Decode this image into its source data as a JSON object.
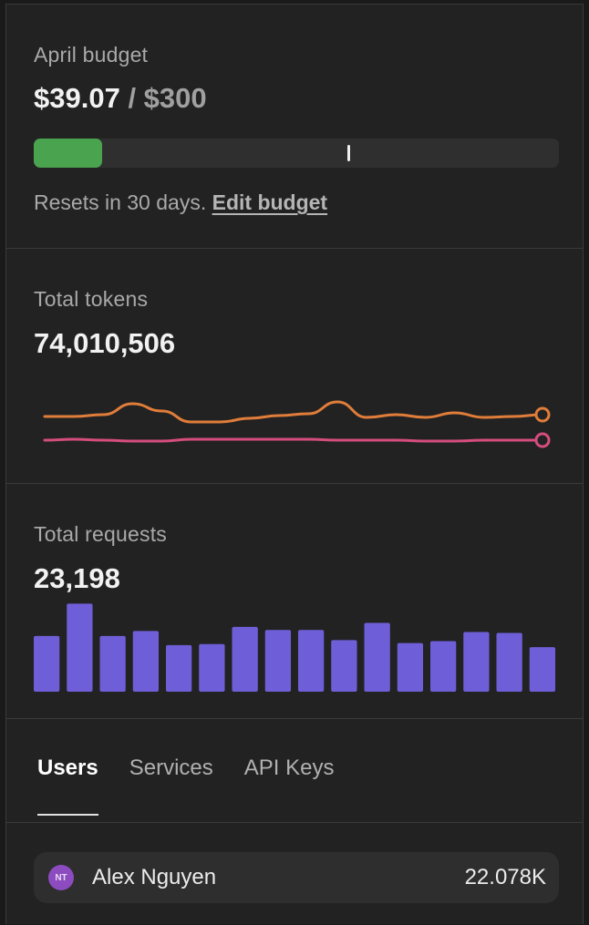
{
  "budget": {
    "label": "April budget",
    "spent": "$39.07",
    "separator": " / ",
    "total": "$300",
    "progress_fraction": 0.1302,
    "marker_fraction": 0.6,
    "fill_color": "#4aa34e",
    "resets_text": "Resets in 30 days.",
    "edit_label": "Edit budget"
  },
  "tokens": {
    "label": "Total tokens",
    "value": "74,010,506",
    "chart_data": {
      "type": "line",
      "series": [
        {
          "color": "#e07d3a",
          "values": [
            46,
            46,
            48,
            60,
            52,
            40,
            40,
            44,
            47,
            49,
            62,
            45,
            48,
            45,
            50,
            45,
            46,
            48
          ]
        },
        {
          "color": "#d54d7d",
          "values": [
            20,
            21,
            20,
            19,
            19,
            21,
            21,
            21,
            21,
            21,
            20,
            20,
            20,
            19,
            19,
            20,
            20,
            20
          ]
        }
      ],
      "ylim": [
        0,
        80
      ]
    }
  },
  "requests": {
    "label": "Total requests",
    "value": "23,198",
    "chart_data": {
      "type": "bar",
      "color": "#6e5fd8",
      "values": [
        55,
        87,
        55,
        60,
        46,
        47,
        64,
        61,
        61,
        51,
        68,
        48,
        50,
        59,
        58,
        44
      ],
      "ylim": [
        0,
        90
      ]
    }
  },
  "tabs": [
    {
      "label": "Users",
      "active": true
    },
    {
      "label": "Services",
      "active": false
    },
    {
      "label": "API Keys",
      "active": false
    }
  ],
  "users": [
    {
      "initials": "NT",
      "name": "Alex Nguyen",
      "value": "22.078K"
    }
  ]
}
